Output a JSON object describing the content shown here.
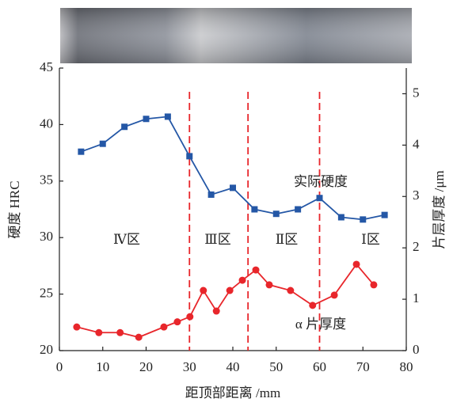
{
  "chart_data": {
    "type": "line",
    "xlabel": "距顶部距离 /mm",
    "ylabel": "硬度 HRC",
    "y2label": "片层厚度 /μm",
    "xlim": [
      0,
      80
    ],
    "xticks": [
      0,
      10,
      20,
      30,
      40,
      50,
      60,
      70,
      80
    ],
    "ylim": [
      20,
      45
    ],
    "yticks": [
      20,
      25,
      30,
      35,
      40,
      45
    ],
    "y2lim": [
      0,
      5.5
    ],
    "y2ticks": [
      0,
      1,
      2,
      3,
      4,
      5
    ],
    "dividers": [
      30,
      43.5,
      60
    ],
    "divider_color": "#e8262b",
    "zones": [
      "Ⅳ区",
      "Ⅲ区",
      "Ⅱ区",
      "Ⅰ区"
    ],
    "series": [
      {
        "name": "实际硬度",
        "color": "#2457a6",
        "marker": "square",
        "x": [
          5,
          10,
          15,
          20,
          25,
          30,
          35,
          40,
          45,
          50,
          55,
          60,
          65,
          70,
          75
        ],
        "values": [
          37.6,
          38.3,
          39.8,
          40.5,
          40.7,
          37.2,
          33.8,
          34.4,
          32.5,
          32.1,
          32.5,
          33.5,
          31.8,
          31.6,
          32.0
        ]
      },
      {
        "name": "α 片厚度",
        "color": "#e8262b",
        "marker": "circle",
        "axis": "y2",
        "x": [
          4,
          9.1,
          14,
          18.3,
          24.1,
          27.2,
          30.1,
          33.2,
          36.2,
          39.3,
          42.2,
          45.3,
          48.4,
          53.3,
          58.4,
          63.4,
          68.5,
          72.5
        ],
        "values": [
          0.46,
          0.35,
          0.35,
          0.26,
          0.46,
          0.56,
          0.66,
          1.17,
          0.77,
          1.17,
          1.37,
          1.57,
          1.28,
          1.17,
          0.88,
          1.08,
          1.68,
          1.28
        ]
      }
    ]
  }
}
